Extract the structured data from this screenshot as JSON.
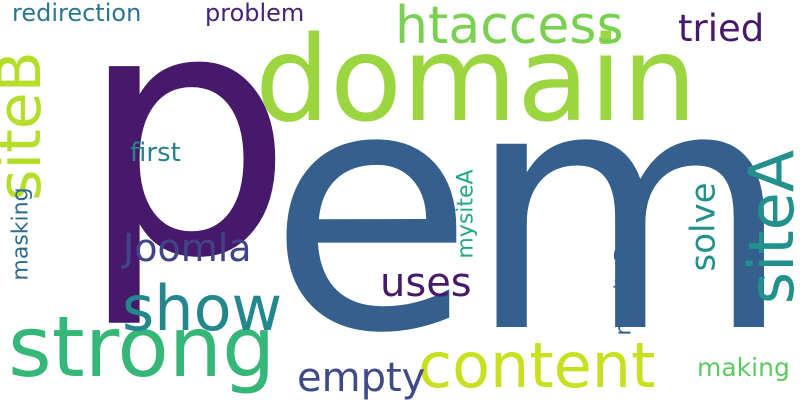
{
  "cloud": {
    "background": "#ffffff",
    "words": [
      {
        "id": "p",
        "text": "p",
        "color": "#46196a"
      },
      {
        "id": "em",
        "text": "em",
        "color": "#355f8d"
      },
      {
        "id": "domain",
        "text": "domain",
        "color": "#9bd640"
      },
      {
        "id": "strong",
        "text": "strong",
        "color": "#35b778"
      },
      {
        "id": "content",
        "text": "content",
        "color": "#c8e020"
      },
      {
        "id": "show",
        "text": "show",
        "color": "#23888e"
      },
      {
        "id": "htaccess",
        "text": "htaccess",
        "color": "#7ad151"
      },
      {
        "id": "siteB",
        "text": "siteB",
        "color": "#b5de2b"
      },
      {
        "id": "siteA",
        "text": "siteA",
        "color": "#22908c"
      },
      {
        "id": "Joomla",
        "text": "Joomla",
        "color": "#414487"
      },
      {
        "id": "uses",
        "text": "uses",
        "color": "#46196a"
      },
      {
        "id": "empty",
        "text": "empty",
        "color": "#3e4a89"
      },
      {
        "id": "tried",
        "text": "tried",
        "color": "#46196a"
      },
      {
        "id": "solve",
        "text": "solve",
        "color": "#21918c"
      },
      {
        "id": "redirection",
        "text": "redirection",
        "color": "#2a778e"
      },
      {
        "id": "problem",
        "text": "problem",
        "color": "#482475"
      },
      {
        "id": "first",
        "text": "first",
        "color": "#26828e"
      },
      {
        "id": "masking",
        "text": "masking",
        "color": "#2f6b8e"
      },
      {
        "id": "mysiteA",
        "text": "mysiteA",
        "color": "#22a884"
      },
      {
        "id": "mysiteB",
        "text": "mysiteB",
        "color": "#33638d"
      },
      {
        "id": "making",
        "text": "making",
        "color": "#5ec962"
      }
    ]
  }
}
